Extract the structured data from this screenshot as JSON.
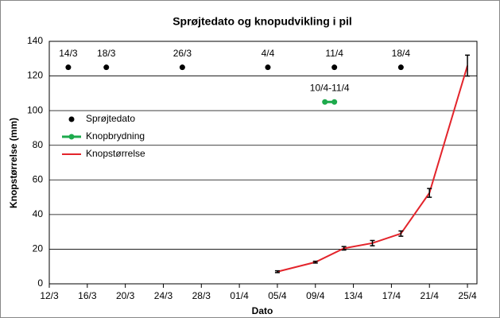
{
  "chart_data": {
    "type": "line",
    "title": "Sprøjtedato og knopudvikling i pil",
    "xlabel": "Dato",
    "ylabel": "Knopstørrelse (mm)",
    "xlim": [
      71,
      116
    ],
    "ylim": [
      0,
      140
    ],
    "xticks": [
      {
        "value": 71,
        "label": "12/3"
      },
      {
        "value": 75,
        "label": "16/3"
      },
      {
        "value": 79,
        "label": "20/3"
      },
      {
        "value": 83,
        "label": "24/3"
      },
      {
        "value": 87,
        "label": "28/3"
      },
      {
        "value": 91,
        "label": "01/4"
      },
      {
        "value": 95,
        "label": "05/4"
      },
      {
        "value": 99,
        "label": "09/4"
      },
      {
        "value": 103,
        "label": "13/4"
      },
      {
        "value": 107,
        "label": "17/4"
      },
      {
        "value": 111,
        "label": "21/4"
      },
      {
        "value": 115,
        "label": "25/4"
      }
    ],
    "yticks": [
      0,
      20,
      40,
      60,
      80,
      100,
      120,
      140
    ],
    "grid": true,
    "legend": "upper left",
    "series": [
      {
        "name": "Sprøjtedato",
        "color": "#000000",
        "style": "scatter",
        "x": [
          73,
          77,
          85,
          94,
          101,
          108
        ],
        "values": [
          125,
          125,
          125,
          125,
          125,
          125
        ],
        "point_labels": [
          "14/3",
          "18/3",
          "26/3",
          "4/4",
          "11/4",
          "18/4"
        ]
      },
      {
        "name": "Knopbrydning",
        "color": "#1daa4c",
        "style": "line-marker",
        "x": [
          100,
          101
        ],
        "values": [
          105,
          105
        ],
        "annotation": "10/4-11/4"
      },
      {
        "name": "Knopstørrelse",
        "color": "#e3242b",
        "style": "line-error",
        "x": [
          95,
          99,
          102,
          105,
          108,
          111,
          115
        ],
        "values": [
          7,
          12.5,
          20.5,
          23.5,
          29,
          52.5,
          126
        ],
        "errors": [
          0.5,
          0.5,
          1,
          1.5,
          1.5,
          2.5,
          6
        ]
      }
    ]
  }
}
